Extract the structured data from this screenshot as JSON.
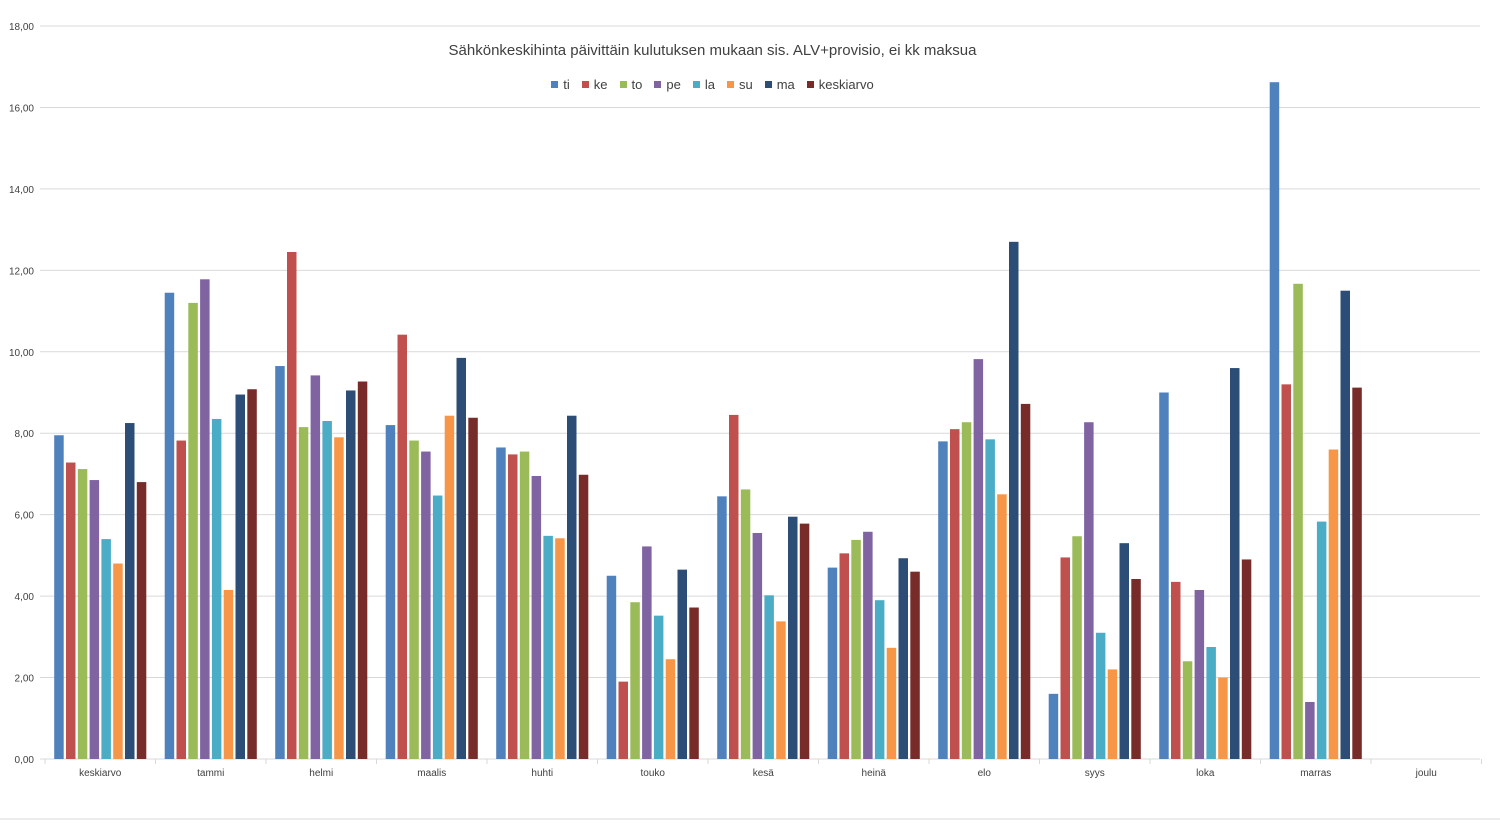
{
  "chart_data": {
    "type": "bar",
    "title": "Sähkönkeskihinta päivittäin kulutuksen mukaan sis. ALV+provisio, ei kk maksua",
    "xlabel": "",
    "ylabel": "",
    "ylim": [
      0,
      18
    ],
    "yticks": [
      "0,00",
      "2,00",
      "4,00",
      "6,00",
      "8,00",
      "10,00",
      "12,00",
      "14,00",
      "16,00",
      "18,00"
    ],
    "grid": true,
    "legend_position": "top",
    "categories": [
      "keskiarvo",
      "tammi",
      "helmi",
      "maalis",
      "huhti",
      "touko",
      "kesä",
      "heinä",
      "elo",
      "syys",
      "loka",
      "marras",
      "joulu"
    ],
    "series": [
      {
        "name": "ti",
        "color": "#4f81bd",
        "values": [
          7.95,
          11.45,
          9.65,
          8.2,
          7.65,
          4.5,
          6.45,
          4.7,
          7.8,
          1.6,
          9.0,
          16.62,
          null
        ]
      },
      {
        "name": "ke",
        "color": "#c0504d",
        "values": [
          7.28,
          7.82,
          12.45,
          10.42,
          7.48,
          1.9,
          8.45,
          5.05,
          8.1,
          4.95,
          4.35,
          9.2,
          null
        ]
      },
      {
        "name": "to",
        "color": "#9bbb59",
        "values": [
          7.12,
          11.2,
          8.15,
          7.82,
          7.55,
          3.85,
          6.62,
          5.38,
          8.27,
          5.47,
          2.4,
          11.67,
          null
        ]
      },
      {
        "name": "pe",
        "color": "#8064a2",
        "values": [
          6.85,
          11.78,
          9.42,
          7.55,
          6.95,
          5.22,
          5.55,
          5.58,
          9.82,
          8.27,
          4.15,
          1.4,
          null
        ]
      },
      {
        "name": "la",
        "color": "#4bacc6",
        "values": [
          5.4,
          8.35,
          8.3,
          6.47,
          5.48,
          3.52,
          4.02,
          3.9,
          7.85,
          3.1,
          2.75,
          5.83,
          null
        ]
      },
      {
        "name": "su",
        "color": "#f79646",
        "values": [
          4.8,
          4.15,
          7.9,
          8.43,
          5.42,
          2.45,
          3.38,
          2.73,
          6.5,
          2.2,
          2.0,
          7.6,
          null
        ]
      },
      {
        "name": "ma",
        "color": "#2c4d75",
        "values": [
          8.25,
          8.95,
          9.05,
          9.85,
          8.43,
          4.65,
          5.95,
          4.93,
          12.7,
          5.3,
          9.6,
          11.5,
          null
        ]
      },
      {
        "name": "keskiarvo",
        "color": "#772c2a",
        "values": [
          6.8,
          9.08,
          9.27,
          8.38,
          6.98,
          3.72,
          5.78,
          4.6,
          8.72,
          4.42,
          4.9,
          9.12,
          null
        ]
      }
    ]
  }
}
